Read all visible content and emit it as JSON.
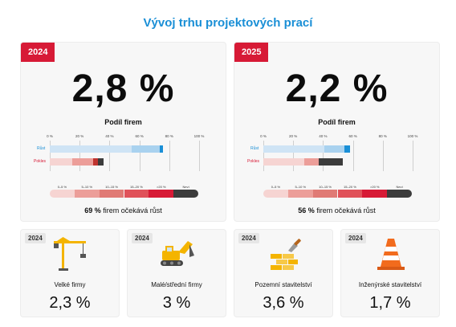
{
  "title": "Vývoj trhu projektových prací",
  "colors": {
    "accent_blue": "#1a8fd6",
    "accent_red": "#d71a36",
    "light_blue": "#cfe4f5",
    "mid_blue": "#a9d2ef",
    "pale_red": "#f6d4d2",
    "mid_red": "#ec9e99",
    "dark_red": "#c0342f",
    "dark_gray": "#3c3c3c"
  },
  "panels": [
    {
      "year": "2024",
      "value": "2,8 %",
      "subtitle": "Podíl firem",
      "ticks": [
        "0 %",
        "20 %",
        "40 %",
        "60 %",
        "80 %",
        "100 %"
      ],
      "growth_label": "Růst",
      "decline_label": "Pokles",
      "growth_pct": 76,
      "decline_pct": 36,
      "scale_labels": [
        "0–5 %",
        "5–10 %",
        "10–15 %",
        "15–20 %",
        ">20 %",
        "Neví"
      ],
      "summary_value": "69 %",
      "summary_text": "firem očekává růst"
    },
    {
      "year": "2025",
      "value": "2,2 %",
      "subtitle": "Podíl firem",
      "ticks": [
        "0 %",
        "20 %",
        "40 %",
        "60 %",
        "80 %",
        "100 %"
      ],
      "growth_label": "Růst",
      "decline_label": "Pokles",
      "growth_pct": 58,
      "decline_pct": 53,
      "scale_labels": [
        "0–5 %",
        "5–10 %",
        "10–15 %",
        "15–20 %",
        ">20 %",
        "Neví"
      ],
      "summary_value": "56 %",
      "summary_text": "firem očekává růst"
    }
  ],
  "segments": [
    {
      "growth": [
        {
          "color": "#cfe4f5",
          "share": 0.72
        },
        {
          "color": "#a9d2ef",
          "share": 0.25
        },
        {
          "color": "#1a8fd6",
          "share": 0.03
        }
      ],
      "decline": [
        {
          "color": "#f6d4d2",
          "share": 0.42
        },
        {
          "color": "#ec9e99",
          "share": 0.38
        },
        {
          "color": "#c0342f",
          "share": 0.1
        },
        {
          "color": "#3c3c3c",
          "share": 0.1
        }
      ]
    },
    {
      "growth": [
        {
          "color": "#cfe4f5",
          "share": 0.7
        },
        {
          "color": "#a9d2ef",
          "share": 0.24
        },
        {
          "color": "#1a8fd6",
          "share": 0.06
        }
      ],
      "decline": [
        {
          "color": "#f6d4d2",
          "share": 0.52
        },
        {
          "color": "#ec9e99",
          "share": 0.18
        },
        {
          "color": "#3c3c3c",
          "share": 0.3
        }
      ]
    }
  ],
  "segments_kpi": [
    {
      "year": "2024",
      "label": "Velké firmy",
      "value": "2,3 %",
      "icon": "crane-icon"
    },
    {
      "year": "2024",
      "label": "Malé/střední firmy",
      "value": "3 %",
      "icon": "excavator-icon"
    },
    {
      "year": "2024",
      "label": "Pozemní stavitelství",
      "value": "3,6 %",
      "icon": "bricks-trowel-icon"
    },
    {
      "year": "2024",
      "label": "Inženýrské stavitelství",
      "value": "1,7 %",
      "icon": "traffic-cone-icon"
    }
  ]
}
